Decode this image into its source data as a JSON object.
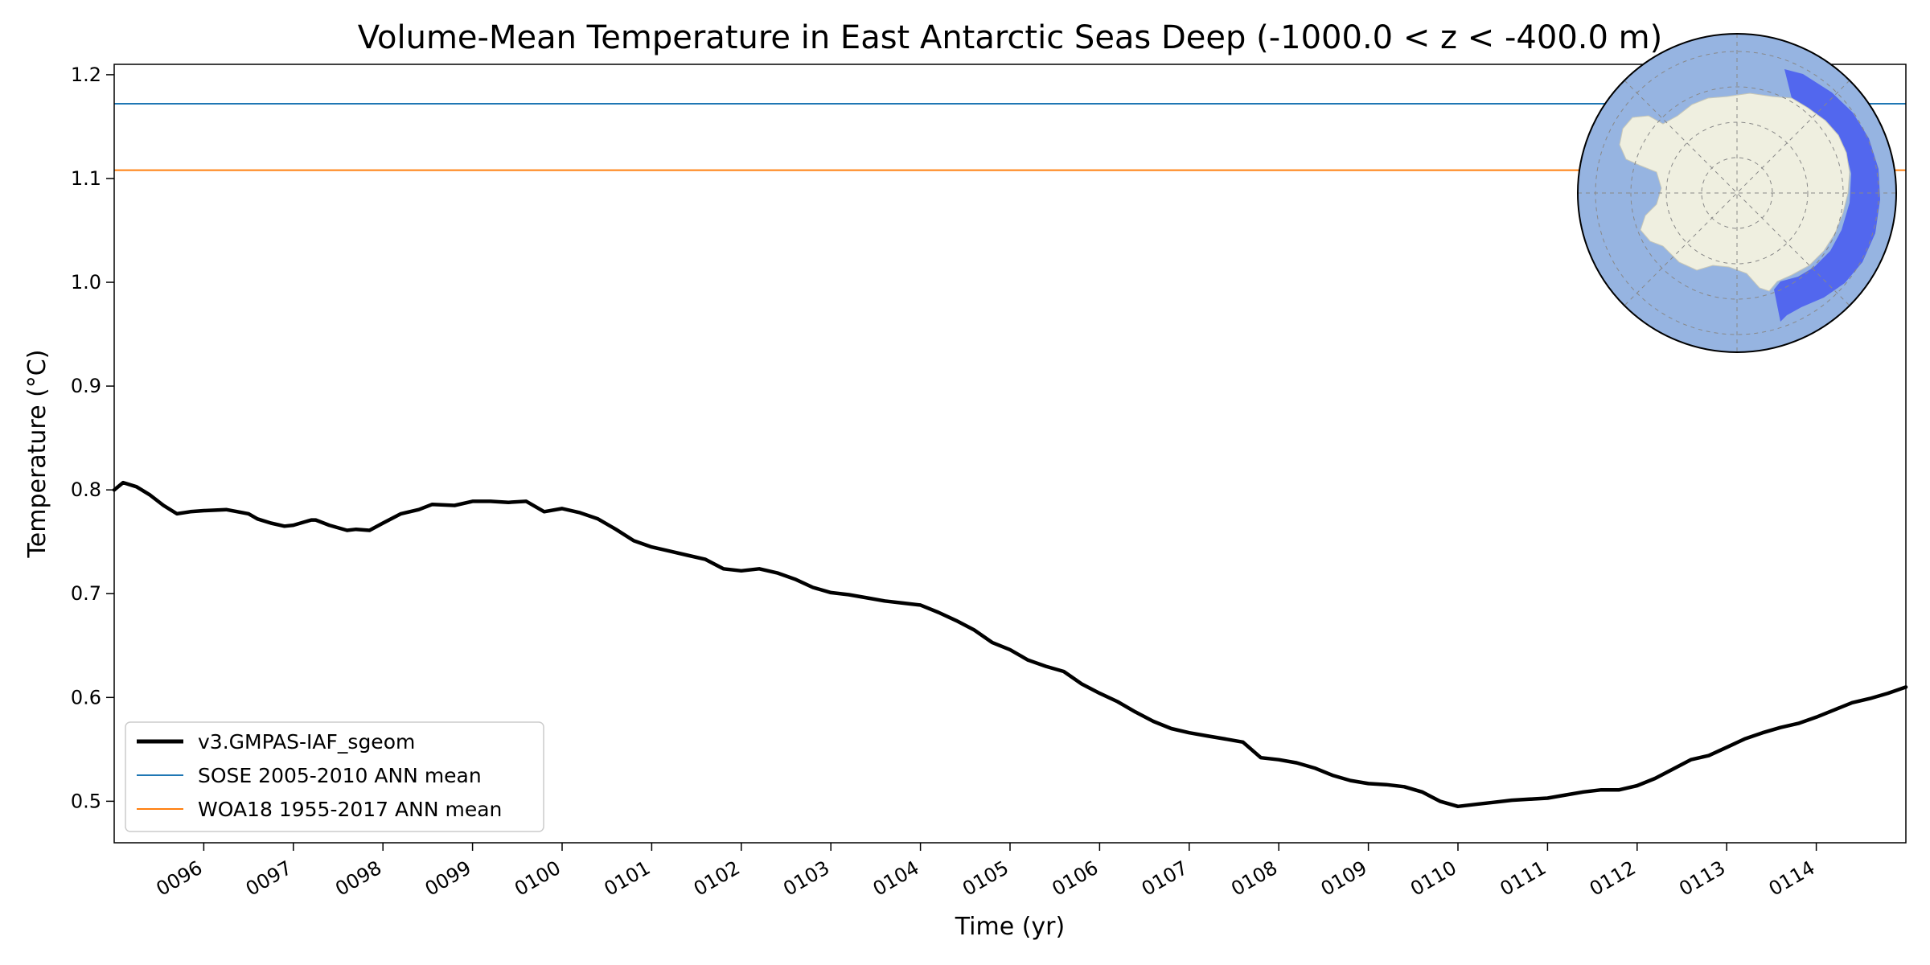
{
  "chart_data": {
    "type": "line",
    "title": "Volume-Mean Temperature in East Antarctic Seas Deep (-1000.0 < z < -400.0 m)",
    "xlabel": "Time (yr)",
    "ylabel": "Temperature (°C)",
    "xlim": [
      95.0,
      115.0
    ],
    "ylim": [
      0.46,
      1.21
    ],
    "x_ticks": [
      96,
      97,
      98,
      99,
      100,
      101,
      102,
      103,
      104,
      105,
      106,
      107,
      108,
      109,
      110,
      111,
      112,
      113,
      114
    ],
    "x_tick_labels": [
      "0096",
      "0097",
      "0098",
      "0099",
      "0100",
      "0101",
      "0102",
      "0103",
      "0104",
      "0105",
      "0106",
      "0107",
      "0108",
      "0109",
      "0110",
      "0111",
      "0112",
      "0113",
      "0114"
    ],
    "y_ticks": [
      0.5,
      0.6,
      0.7,
      0.8,
      0.9,
      1.0,
      1.1,
      1.2
    ],
    "y_tick_labels": [
      "0.5",
      "0.6",
      "0.7",
      "0.8",
      "0.9",
      "1.0",
      "1.1",
      "1.2"
    ],
    "grid": false,
    "legend_position": "lower-left",
    "series": [
      {
        "name": "v3.GMPAS-IAF_sgeom",
        "color": "#000000",
        "style": "thick",
        "x": [
          95.0,
          95.1,
          95.25,
          95.4,
          95.55,
          95.7,
          95.85,
          96.0,
          96.25,
          96.5,
          96.6,
          96.75,
          96.9,
          97.0,
          97.2,
          97.25,
          97.4,
          97.6,
          97.7,
          97.85,
          98.0,
          98.2,
          98.4,
          98.55,
          98.8,
          99.0,
          99.2,
          99.4,
          99.6,
          99.8,
          100.0,
          100.2,
          100.4,
          100.6,
          100.8,
          101.0,
          101.2,
          101.4,
          101.6,
          101.8,
          102.0,
          102.2,
          102.4,
          102.6,
          102.8,
          103.0,
          103.2,
          103.4,
          103.6,
          103.8,
          104.0,
          104.2,
          104.4,
          104.6,
          104.8,
          105.0,
          105.2,
          105.4,
          105.6,
          105.8,
          106.0,
          106.2,
          106.4,
          106.6,
          106.8,
          107.0,
          107.2,
          107.4,
          107.6,
          107.8,
          108.0,
          108.2,
          108.4,
          108.6,
          108.8,
          109.0,
          109.2,
          109.4,
          109.6,
          109.8,
          110.0,
          110.2,
          110.4,
          110.6,
          110.8,
          111.0,
          111.2,
          111.4,
          111.6,
          111.8,
          112.0,
          112.2,
          112.4,
          112.6,
          112.8,
          113.0,
          113.2,
          113.4,
          113.6,
          113.8,
          114.0,
          114.2,
          114.4,
          114.6,
          114.8,
          115.0
        ],
        "values": [
          0.8,
          0.807,
          0.803,
          0.795,
          0.785,
          0.777,
          0.779,
          0.78,
          0.781,
          0.777,
          0.772,
          0.768,
          0.765,
          0.766,
          0.771,
          0.771,
          0.766,
          0.761,
          0.762,
          0.761,
          0.768,
          0.777,
          0.781,
          0.786,
          0.785,
          0.789,
          0.789,
          0.788,
          0.789,
          0.779,
          0.782,
          0.778,
          0.772,
          0.762,
          0.751,
          0.745,
          0.741,
          0.737,
          0.733,
          0.724,
          0.722,
          0.724,
          0.72,
          0.714,
          0.706,
          0.701,
          0.699,
          0.696,
          0.693,
          0.691,
          0.689,
          0.682,
          0.674,
          0.665,
          0.653,
          0.646,
          0.636,
          0.63,
          0.625,
          0.613,
          0.604,
          0.596,
          0.586,
          0.577,
          0.57,
          0.566,
          0.563,
          0.56,
          0.557,
          0.542,
          0.54,
          0.537,
          0.532,
          0.525,
          0.52,
          0.517,
          0.516,
          0.514,
          0.509,
          0.5,
          0.495,
          0.497,
          0.499,
          0.501,
          0.502,
          0.503,
          0.506,
          0.509,
          0.511,
          0.511,
          0.515,
          0.522,
          0.531,
          0.54,
          0.544,
          0.552,
          0.56,
          0.566,
          0.571,
          0.575,
          0.581,
          0.588,
          0.595,
          0.599,
          0.604,
          0.61
        ]
      },
      {
        "name": "SOSE 2005-2010 ANN mean",
        "color": "#1f77b4",
        "style": "thin",
        "x": [
          95.0,
          115.0
        ],
        "values": [
          1.172,
          1.172
        ]
      },
      {
        "name": "WOA18 1955-2017 ANN mean",
        "color": "#ff7f0e",
        "style": "thin",
        "x": [
          95.0,
          115.0
        ],
        "values": [
          1.108,
          1.108
        ]
      }
    ],
    "inset": {
      "description": "South polar stereographic map with the East Antarctic Seas region highlighted",
      "ocean_color": "#96b4e1",
      "land_color": "#efefe0",
      "region_color": "#4a5ef0"
    }
  }
}
